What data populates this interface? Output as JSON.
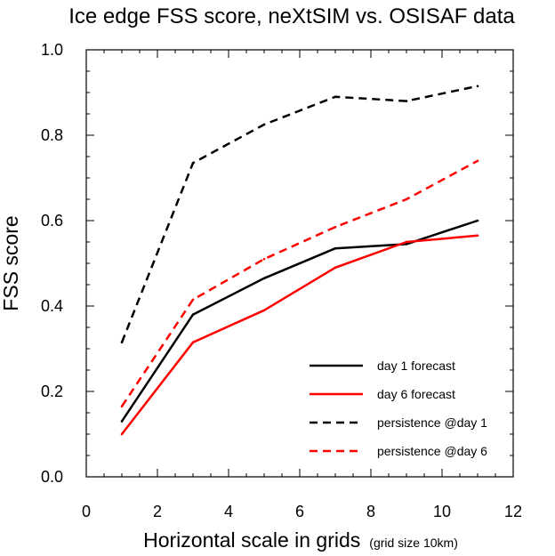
{
  "chart_data": {
    "type": "line",
    "title": "Ice edge FSS score, neXtSIM vs. OSISAF data",
    "xlabel": "Horizontal scale in grids",
    "xlabel_note": "(grid size 10km)",
    "ylabel": "FSS score",
    "xlim": [
      0,
      12
    ],
    "ylim": [
      0.0,
      1.0
    ],
    "xticks": [
      0,
      2,
      4,
      6,
      8,
      10,
      12
    ],
    "xtick_labels": [
      "0",
      "2",
      "4",
      "6",
      "8",
      "10",
      "12"
    ],
    "yticks": [
      0.0,
      0.2,
      0.4,
      0.6,
      0.8,
      1.0
    ],
    "ytick_labels": [
      "0.0",
      "0.2",
      "0.4",
      "0.6",
      "0.8",
      "1.0"
    ],
    "grid": false,
    "legend_position": "bottom-right",
    "x": [
      1,
      3,
      5,
      7,
      9,
      11
    ],
    "series": [
      {
        "name": "day 1 forecast",
        "color": "#000000",
        "dashed": false,
        "values": [
          0.13,
          0.38,
          0.465,
          0.535,
          0.545,
          0.6
        ]
      },
      {
        "name": "day 6 forecast",
        "color": "#ff0000",
        "dashed": false,
        "values": [
          0.1,
          0.315,
          0.39,
          0.49,
          0.55,
          0.565
        ]
      },
      {
        "name": "persistence @day 1",
        "color": "#000000",
        "dashed": true,
        "values": [
          0.315,
          0.735,
          0.825,
          0.89,
          0.88,
          0.915
        ]
      },
      {
        "name": "persistence @day 6",
        "color": "#ff0000",
        "dashed": true,
        "values": [
          0.165,
          0.415,
          0.51,
          0.585,
          0.65,
          0.74
        ]
      }
    ]
  }
}
